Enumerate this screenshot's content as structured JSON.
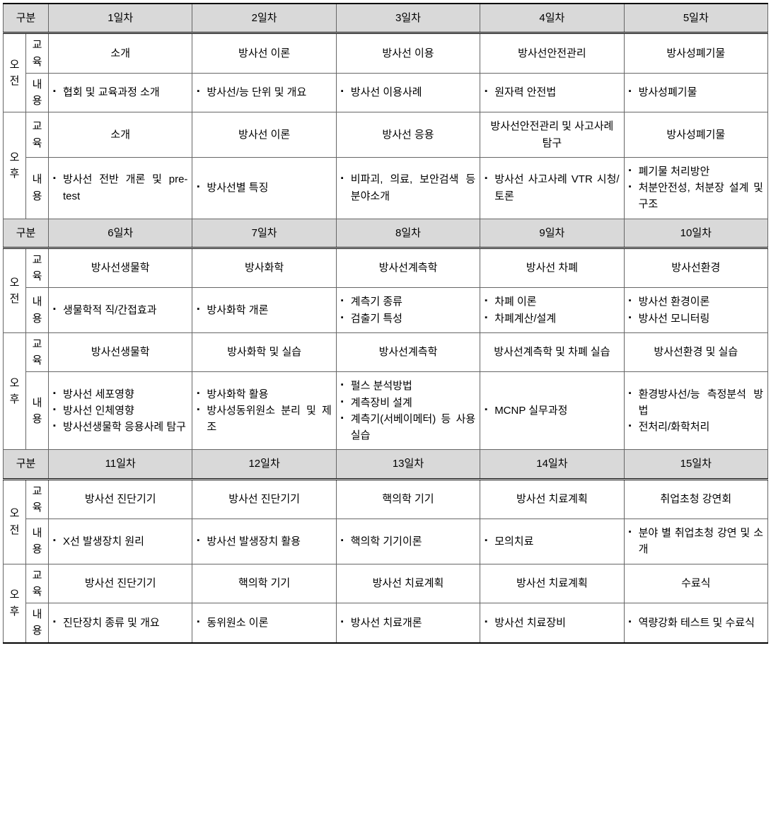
{
  "labels": {
    "gubun": "구분",
    "am": "오전",
    "pm": "오후",
    "edu": "교육",
    "content": "내용"
  },
  "dayHeaders": {
    "w1": [
      "1일차",
      "2일차",
      "3일차",
      "4일차",
      "5일차"
    ],
    "w2": [
      "6일차",
      "7일차",
      "8일차",
      "9일차",
      "10일차"
    ],
    "w3": [
      "11일차",
      "12일차",
      "13일차",
      "14일차",
      "15일차"
    ]
  },
  "w1": {
    "am_edu": [
      "소개",
      "방사선 이론",
      "방사선 이용",
      "방사선안전관리",
      "방사성폐기물"
    ],
    "am_con": [
      [
        "협회 및 교육과정 소개"
      ],
      [
        "방사선/능 단위 및 개요"
      ],
      [
        "방사선 이용사례"
      ],
      [
        "원자력 안전법"
      ],
      [
        "방사성폐기물"
      ]
    ],
    "pm_edu": [
      "소개",
      "방사선 이론",
      "방사선 응용",
      "방사선안전관리 및 사고사례 탐구",
      "방사성폐기물"
    ],
    "pm_con": [
      [
        "방사선 전반 개론 및 pre-test"
      ],
      [
        "방사선별 특징"
      ],
      [
        "비파괴, 의료, 보안검색 등 분야소개"
      ],
      [
        "방사선 사고사례 VTR 시청/토론"
      ],
      [
        "폐기물 처리방안",
        "처분안전성, 처분장 설계 및 구조"
      ]
    ]
  },
  "w2": {
    "am_edu": [
      "방사선생물학",
      "방사화학",
      "방사선계측학",
      "방사선 차폐",
      "방사선환경"
    ],
    "am_con": [
      [
        "생물학적 직/간접효과"
      ],
      [
        "방사화학 개론"
      ],
      [
        "계측기 종류",
        "검출기 특성"
      ],
      [
        "차폐 이론",
        "차폐계산/설계"
      ],
      [
        "방사선 환경이론",
        "방사선 모니터링"
      ]
    ],
    "pm_edu": [
      "방사선생물학",
      "방사화학 및 실습",
      "방사선계측학",
      "방사선계측학 및 차폐 실습",
      "방사선환경 및 실습"
    ],
    "pm_con": [
      [
        "방사선 세포영향",
        "방사선 인체영향",
        "방사선생물학 응용사례 탐구"
      ],
      [
        "방사화학 활용",
        "방사성동위원소 분리 및 제조"
      ],
      [
        "펄스 분석방법",
        "계측장비 설계",
        "계측기(서베이메터) 등 사용 실습"
      ],
      [
        "MCNP 실무과정"
      ],
      [
        "환경방사선/능 측정분석 방법",
        "전처리/화학처리"
      ]
    ]
  },
  "w3": {
    "am_edu": [
      "방사선 진단기기",
      "방사선 진단기기",
      "핵의학 기기",
      "방사선 치료계획",
      "취업초청 강연회"
    ],
    "am_con": [
      [
        "X선 발생장치 원리"
      ],
      [
        "방사선 발생장치 활용"
      ],
      [
        "핵의학 기기이론"
      ],
      [
        "모의치료"
      ],
      [
        "분야 별 취업초청 강연 및 소개"
      ]
    ],
    "pm_edu": [
      "방사선 진단기기",
      "핵의학 기기",
      "방사선 치료계획",
      "방사선 치료계획",
      "수료식"
    ],
    "pm_con": [
      [
        "진단장치 종류 및 개요"
      ],
      [
        "동위원소 이론"
      ],
      [
        "방사선 치료개론"
      ],
      [
        "방사선 치료장비"
      ],
      [
        "역량강화 테스트 및 수료식"
      ]
    ]
  }
}
